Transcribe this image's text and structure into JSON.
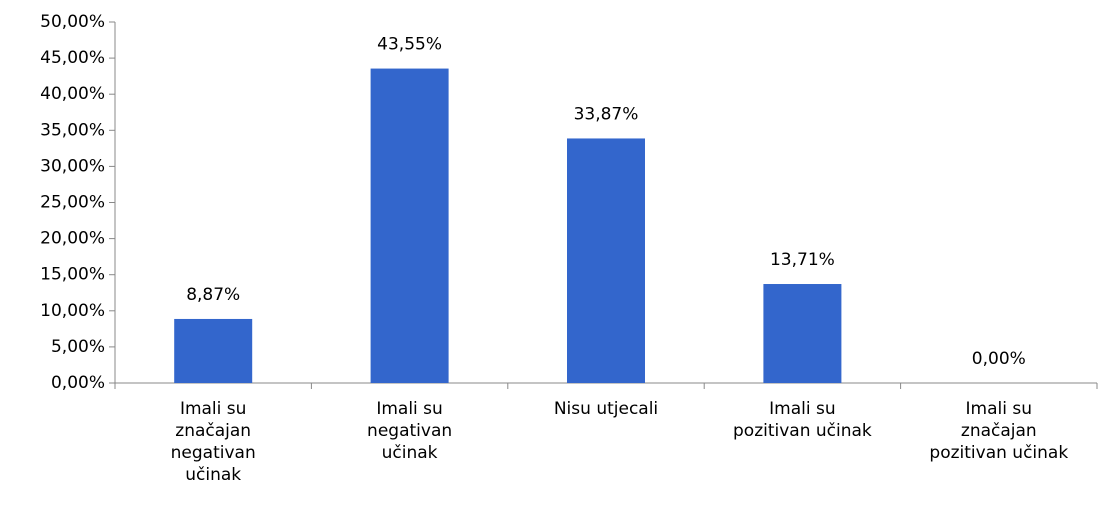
{
  "chart_data": {
    "type": "bar",
    "categories": [
      "Imali su\nznačajan\nnegativan\nučinak",
      "Imali su\nnegativan\nučinak",
      "Nisu utjecali",
      "Imali su\npozitivan učinak",
      "Imali su\nznačajan\npozitivan učinak"
    ],
    "values": [
      8.87,
      43.55,
      33.87,
      13.71,
      0
    ],
    "value_labels": [
      "8,87%",
      "43,55%",
      "33,87%",
      "13,71%",
      "0,00%"
    ],
    "color": "#3366cc",
    "ylim": [
      0,
      50
    ],
    "yticks": [
      {
        "value": 0,
        "label": "0,00%"
      },
      {
        "value": 5,
        "label": "5,00%"
      },
      {
        "value": 10,
        "label": "10,00%"
      },
      {
        "value": 15,
        "label": "15,00%"
      },
      {
        "value": 20,
        "label": "20,00%"
      },
      {
        "value": 25,
        "label": "25,00%"
      },
      {
        "value": 30,
        "label": "30,00%"
      },
      {
        "value": 35,
        "label": "35,00%"
      },
      {
        "value": 40,
        "label": "40,00%"
      },
      {
        "value": 45,
        "label": "45,00%"
      },
      {
        "value": 50,
        "label": "50,00%"
      }
    ],
    "grid": false
  }
}
